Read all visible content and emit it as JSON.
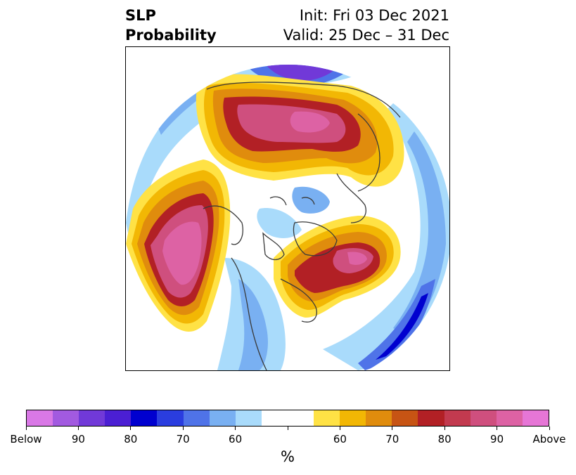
{
  "title": {
    "left_line1": "SLP",
    "left_line2": "Probability",
    "right_line1": "Init: Fri 03 Dec 2021",
    "right_line2": "Valid: 25 Dec – 31 Dec"
  },
  "colorbar": {
    "unit": "%",
    "colors": [
      "#d978e6",
      "#a25ae0",
      "#7139d8",
      "#4b1fd3",
      "#0000cf",
      "#2a3ddf",
      "#4f73e8",
      "#79b0f2",
      "#a9dbfb",
      "#ffffff",
      "#ffffff",
      "#ffe245",
      "#f2b704",
      "#e08c0d",
      "#c75414",
      "#b22025",
      "#c23a4f",
      "#cf4f7e",
      "#dd62a4",
      "#e676d6"
    ],
    "tick_labels": [
      "Below",
      "90",
      "80",
      "70",
      "60",
      "",
      "60",
      "70",
      "80",
      "90",
      "Above"
    ]
  },
  "map": {
    "palette": {
      "blue_light": "#a9dbfb",
      "blue_2": "#79b0f2",
      "blue_3": "#4f73e8",
      "blue_4": "#2a3ddf",
      "blue_5": "#0000cf",
      "purple_1": "#4b1fd3",
      "purple_2": "#7139d8",
      "purple_3": "#a25ae0",
      "yellow": "#ffe245",
      "gold": "#f2b704",
      "orange": "#e08c0d",
      "dark_orange": "#c75414",
      "red": "#b22025",
      "crimson": "#c23a4f",
      "rose": "#cf4f7e",
      "pink": "#dd62a4",
      "coast": "#3a3a3a"
    }
  }
}
